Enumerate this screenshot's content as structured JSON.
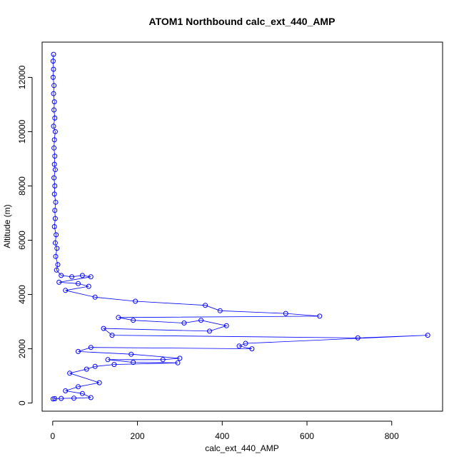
{
  "chart_data": {
    "type": "scatter",
    "title": "ATOM1 Northbound calc_ext_440_AMP",
    "xlabel": "calc_ext_440_AMP",
    "ylabel": "Altitude (m)",
    "xlim": [
      -25,
      920
    ],
    "ylim": [
      -300,
      13300
    ],
    "x_ticks": [
      0,
      200,
      400,
      600,
      800
    ],
    "x_tick_labels": [
      "0",
      "200",
      "400",
      "600",
      "800"
    ],
    "y_ticks": [
      0,
      2000,
      4000,
      6000,
      8000,
      10000,
      12000
    ],
    "y_tick_labels": [
      "0",
      "2000",
      "4000",
      "6000",
      "8000",
      "10000",
      "12000"
    ],
    "grid": false,
    "legend": "none",
    "marker": "open-circle",
    "connected": true,
    "series_color": "#0000ff",
    "series": [
      {
        "points": [
          [
            2,
            12850
          ],
          [
            1,
            12600
          ],
          [
            2,
            12300
          ],
          [
            1,
            12000
          ],
          [
            3,
            11700
          ],
          [
            2,
            11400
          ],
          [
            4,
            11100
          ],
          [
            3,
            10800
          ],
          [
            5,
            10500
          ],
          [
            2,
            10200
          ],
          [
            6,
            10000
          ],
          [
            4,
            9700
          ],
          [
            3,
            9400
          ],
          [
            5,
            9100
          ],
          [
            4,
            8800
          ],
          [
            6,
            8600
          ],
          [
            3,
            8300
          ],
          [
            5,
            8000
          ],
          [
            4,
            7700
          ],
          [
            7,
            7400
          ],
          [
            5,
            7100
          ],
          [
            6,
            6800
          ],
          [
            4,
            6500
          ],
          [
            8,
            6200
          ],
          [
            6,
            5900
          ],
          [
            10,
            5700
          ],
          [
            7,
            5400
          ],
          [
            12,
            5100
          ],
          [
            9,
            4900
          ],
          [
            20,
            4700
          ],
          [
            45,
            4650
          ],
          [
            70,
            4700
          ],
          [
            90,
            4650
          ],
          [
            15,
            4450
          ],
          [
            60,
            4400
          ],
          [
            85,
            4300
          ],
          [
            30,
            4150
          ],
          [
            100,
            3900
          ],
          [
            195,
            3750
          ],
          [
            360,
            3600
          ],
          [
            395,
            3400
          ],
          [
            550,
            3300
          ],
          [
            630,
            3200
          ],
          [
            155,
            3150
          ],
          [
            190,
            3050
          ],
          [
            310,
            2950
          ],
          [
            350,
            3050
          ],
          [
            410,
            2850
          ],
          [
            370,
            2650
          ],
          [
            120,
            2750
          ],
          [
            140,
            2500
          ],
          [
            720,
            2400
          ],
          [
            885,
            2500
          ],
          [
            455,
            2200
          ],
          [
            440,
            2100
          ],
          [
            470,
            2000
          ],
          [
            90,
            2050
          ],
          [
            60,
            1900
          ],
          [
            185,
            1800
          ],
          [
            300,
            1650
          ],
          [
            260,
            1600
          ],
          [
            130,
            1600
          ],
          [
            190,
            1500
          ],
          [
            295,
            1480
          ],
          [
            145,
            1420
          ],
          [
            100,
            1350
          ],
          [
            80,
            1250
          ],
          [
            40,
            1100
          ],
          [
            110,
            750
          ],
          [
            60,
            600
          ],
          [
            30,
            450
          ],
          [
            70,
            350
          ],
          [
            90,
            200
          ],
          [
            50,
            180
          ],
          [
            20,
            170
          ],
          [
            5,
            160
          ],
          [
            1,
            150
          ]
        ]
      }
    ]
  }
}
